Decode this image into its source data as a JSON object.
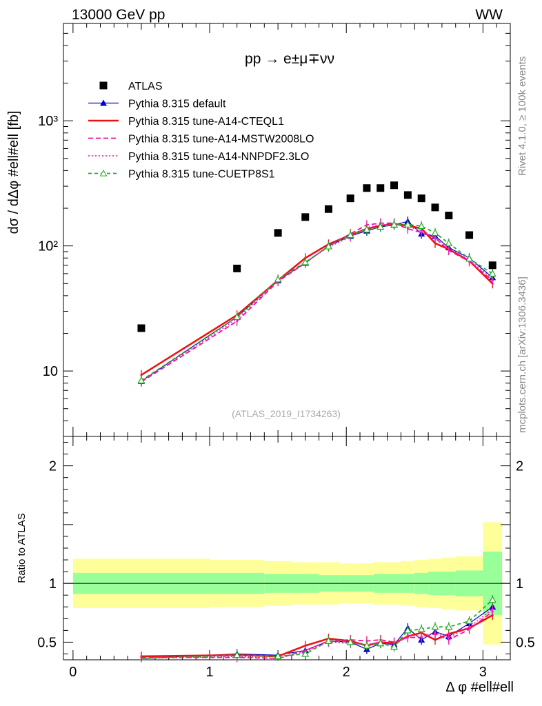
{
  "header": {
    "left": "13000 GeV pp",
    "right": "WW"
  },
  "side": {
    "right_top": "Rivet 4.1.0, ≥ 100k events",
    "right_bottom": "mcplots.cern.ch [arXiv:1306.3436]"
  },
  "chart_data": [
    {
      "type": "line",
      "title": "pp → e±μ∓νν",
      "analysis_tag": "(ATLAS_2019_I1734263)",
      "ylabel": "dσ / dΔφ #ell#ell [fb]",
      "yscale": "log",
      "ylim": [
        3,
        6000
      ],
      "xlim": [
        -0.07,
        3.2
      ],
      "yticks": [
        {
          "v": 10,
          "label": "10"
        },
        {
          "v": 100,
          "label": "10²"
        },
        {
          "v": 1000,
          "label": "10³"
        }
      ],
      "x": [
        0.5,
        1.2,
        1.5,
        1.7,
        1.87,
        2.03,
        2.15,
        2.25,
        2.35,
        2.45,
        2.55,
        2.65,
        2.75,
        2.9,
        3.07
      ],
      "series": [
        {
          "name": "ATLAS",
          "style": "data",
          "color": "#000000",
          "values": [
            22,
            66,
            127,
            170,
            197,
            240,
            290,
            290,
            305,
            255,
            240,
            203,
            175,
            122,
            70
          ]
        },
        {
          "name": "Pythia 8.315 default",
          "style": "solid-triangle",
          "color": "#0000cc",
          "values": [
            8.3,
            27,
            53,
            73,
            100,
            120,
            132,
            142,
            147,
            157,
            125,
            120,
            97,
            80,
            56
          ]
        },
        {
          "name": "Pythia 8.315 tune-A14-CTEQL1",
          "style": "thick",
          "color": "#ee1111",
          "values": [
            9.3,
            28,
            53,
            80,
            103,
            122,
            137,
            145,
            150,
            145,
            138,
            105,
            94,
            76,
            50
          ]
        },
        {
          "name": "Pythia 8.315 tune-A14-MSTW2008LO",
          "style": "dashed",
          "color": "#ee1199",
          "values": [
            8.2,
            25,
            52,
            73,
            100,
            125,
            147,
            152,
            152,
            137,
            128,
            116,
            92,
            75,
            53
          ]
        },
        {
          "name": "Pythia 8.315 tune-A14-NNPDF2.3LO",
          "style": "dotted",
          "color": "#ff22cc",
          "values": [
            8.3,
            26,
            53,
            74,
            98,
            118,
            140,
            148,
            148,
            143,
            132,
            118,
            96,
            77,
            55
          ]
        },
        {
          "name": "Pythia 8.315 tune-CUETP8S1",
          "style": "dashed-open-triangle",
          "color": "#22aa22",
          "values": [
            8.4,
            27,
            54,
            74,
            99,
            122,
            135,
            142,
            148,
            148,
            144,
            127,
            105,
            79,
            60
          ]
        }
      ]
    },
    {
      "type": "line",
      "ylabel": "Ratio to ATLAS",
      "xlabel": "Δ φ #ell#ell",
      "ylim": [
        0.35,
        2.25
      ],
      "xlim": [
        -0.07,
        3.2
      ],
      "yticks": [
        {
          "v": 0.5,
          "label": "0.5"
        },
        {
          "v": 1,
          "label": "1"
        },
        {
          "v": 2,
          "label": "2"
        }
      ],
      "xticks": [
        {
          "v": 0,
          "label": "0"
        },
        {
          "v": 1,
          "label": "1"
        },
        {
          "v": 2,
          "label": "2"
        },
        {
          "v": 3,
          "label": "3"
        }
      ],
      "bin_edges": [
        0,
        1,
        1.4,
        1.6,
        1.8,
        1.95,
        2.1,
        2.2,
        2.3,
        2.4,
        2.5,
        2.6,
        2.7,
        2.8,
        3.0,
        3.14
      ],
      "band_outer": [
        0.21,
        0.2,
        0.19,
        0.18,
        0.18,
        0.17,
        0.17,
        0.18,
        0.18,
        0.19,
        0.2,
        0.21,
        0.22,
        0.23,
        0.52
      ],
      "band_inner": [
        0.09,
        0.09,
        0.08,
        0.08,
        0.07,
        0.07,
        0.07,
        0.08,
        0.08,
        0.08,
        0.09,
        0.1,
        0.1,
        0.11,
        0.27
      ],
      "x": [
        0.5,
        1.2,
        1.5,
        1.7,
        1.87,
        2.03,
        2.15,
        2.25,
        2.35,
        2.45,
        2.55,
        2.65,
        2.75,
        2.9,
        3.07
      ],
      "series": [
        {
          "name": "Pythia 8.315 default",
          "style": "solid-triangle",
          "color": "#0000cc",
          "values": [
            0.32,
            0.4,
            0.39,
            0.43,
            0.51,
            0.5,
            0.44,
            0.49,
            0.48,
            0.62,
            0.52,
            0.59,
            0.55,
            0.66,
            0.8
          ]
        },
        {
          "name": "Pythia 8.315 tune-A14-CTEQL1",
          "style": "thick",
          "color": "#ee1111",
          "values": [
            0.38,
            0.39,
            0.38,
            0.47,
            0.53,
            0.51,
            0.47,
            0.5,
            0.49,
            0.55,
            0.58,
            0.52,
            0.57,
            0.62,
            0.73
          ]
        },
        {
          "name": "Pythia 8.315 tune-A14-MSTW2008LO",
          "style": "dashed",
          "color": "#ee1199",
          "values": [
            0.37,
            0.37,
            0.34,
            0.43,
            0.51,
            0.52,
            0.51,
            0.52,
            0.5,
            0.54,
            0.54,
            0.57,
            0.52,
            0.61,
            0.76
          ]
        },
        {
          "name": "Pythia 8.315 tune-A14-NNPDF2.3LO",
          "style": "dotted",
          "color": "#ff22cc",
          "values": [
            0.36,
            0.38,
            0.36,
            0.42,
            0.5,
            0.49,
            0.48,
            0.5,
            0.47,
            0.56,
            0.55,
            0.58,
            0.54,
            0.63,
            0.78
          ]
        },
        {
          "name": "Pythia 8.315 tune-CUETP8S1",
          "style": "dashed-open-triangle",
          "color": "#22aa22",
          "values": [
            0.36,
            0.39,
            0.38,
            0.4,
            0.51,
            0.5,
            0.47,
            0.49,
            0.46,
            0.6,
            0.61,
            0.63,
            0.63,
            0.68,
            0.86
          ]
        }
      ]
    }
  ]
}
